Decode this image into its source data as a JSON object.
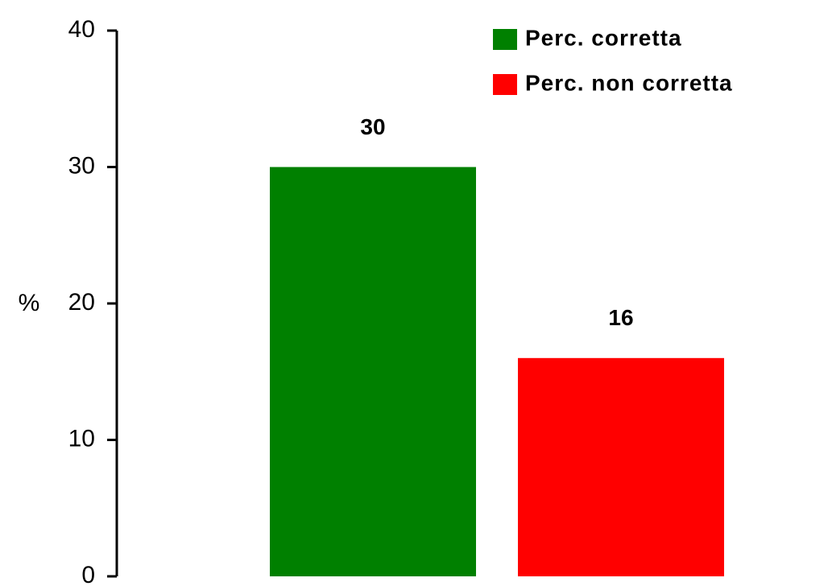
{
  "chart_data": {
    "type": "bar",
    "ylabel": "%",
    "categories": [
      null
    ],
    "series": [
      {
        "name": "Perc. corretta",
        "color": "#008000",
        "values": [
          30
        ]
      },
      {
        "name": "Perc. non corretta",
        "color": "#ff0000",
        "values": [
          16
        ]
      }
    ],
    "ylim": [
      0,
      40
    ],
    "yticks": [
      0,
      10,
      20,
      30,
      40
    ],
    "grid": false,
    "legend": "upper right"
  }
}
